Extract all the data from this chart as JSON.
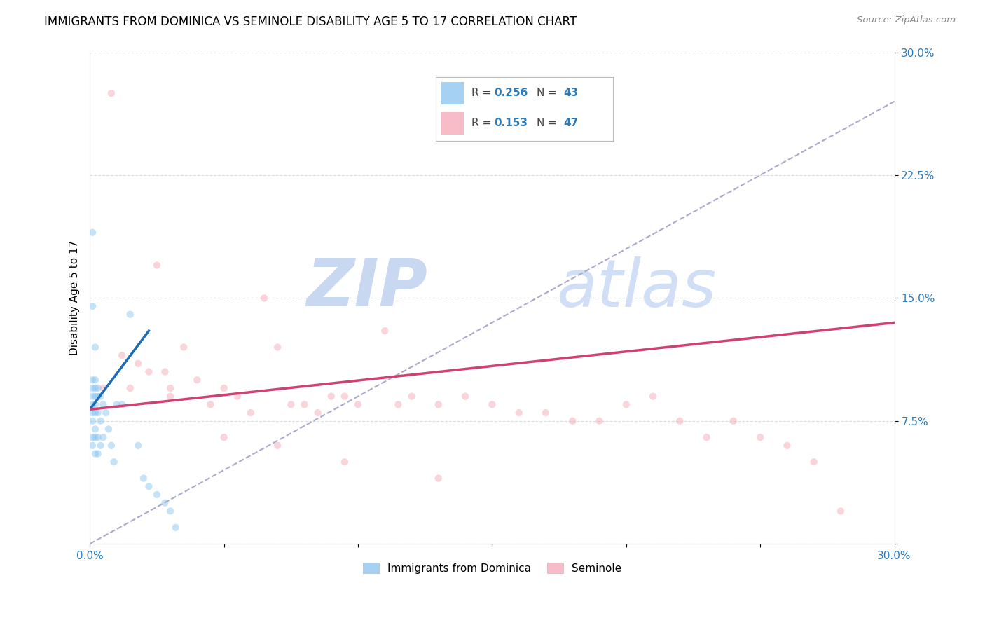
{
  "title": "IMMIGRANTS FROM DOMINICA VS SEMINOLE DISABILITY AGE 5 TO 17 CORRELATION CHART",
  "source": "Source: ZipAtlas.com",
  "ylabel": "Disability Age 5 to 17",
  "xlim": [
    0.0,
    0.3
  ],
  "ylim": [
    0.0,
    0.3
  ],
  "xticks": [
    0.0,
    0.05,
    0.1,
    0.15,
    0.2,
    0.25,
    0.3
  ],
  "yticks": [
    0.0,
    0.075,
    0.15,
    0.225,
    0.3
  ],
  "xticklabels": [
    "0.0%",
    "",
    "",
    "",
    "",
    "",
    "30.0%"
  ],
  "yticklabels": [
    "",
    "7.5%",
    "15.0%",
    "22.5%",
    "30.0%"
  ],
  "blue_scatter_x": [
    0.001,
    0.001,
    0.001,
    0.001,
    0.001,
    0.001,
    0.001,
    0.001,
    0.001,
    0.001,
    0.002,
    0.002,
    0.002,
    0.002,
    0.002,
    0.002,
    0.002,
    0.002,
    0.002,
    0.003,
    0.003,
    0.003,
    0.003,
    0.003,
    0.004,
    0.004,
    0.004,
    0.005,
    0.005,
    0.006,
    0.007,
    0.008,
    0.009,
    0.01,
    0.012,
    0.015,
    0.018,
    0.02,
    0.022,
    0.025,
    0.028,
    0.03,
    0.032
  ],
  "blue_scatter_y": [
    0.19,
    0.145,
    0.1,
    0.095,
    0.09,
    0.085,
    0.08,
    0.075,
    0.065,
    0.06,
    0.12,
    0.1,
    0.095,
    0.09,
    0.085,
    0.08,
    0.07,
    0.065,
    0.055,
    0.095,
    0.09,
    0.08,
    0.065,
    0.055,
    0.09,
    0.075,
    0.06,
    0.085,
    0.065,
    0.08,
    0.07,
    0.06,
    0.05,
    0.085,
    0.085,
    0.14,
    0.06,
    0.04,
    0.035,
    0.03,
    0.025,
    0.02,
    0.01
  ],
  "pink_scatter_x": [
    0.008,
    0.012,
    0.018,
    0.022,
    0.025,
    0.028,
    0.03,
    0.035,
    0.04,
    0.045,
    0.05,
    0.055,
    0.06,
    0.065,
    0.07,
    0.075,
    0.08,
    0.085,
    0.09,
    0.095,
    0.1,
    0.11,
    0.115,
    0.12,
    0.13,
    0.14,
    0.15,
    0.16,
    0.17,
    0.18,
    0.19,
    0.2,
    0.21,
    0.22,
    0.23,
    0.24,
    0.25,
    0.26,
    0.005,
    0.015,
    0.03,
    0.05,
    0.07,
    0.095,
    0.13,
    0.27,
    0.28
  ],
  "pink_scatter_y": [
    0.275,
    0.115,
    0.11,
    0.105,
    0.17,
    0.105,
    0.095,
    0.12,
    0.1,
    0.085,
    0.095,
    0.09,
    0.08,
    0.15,
    0.12,
    0.085,
    0.085,
    0.08,
    0.09,
    0.09,
    0.085,
    0.13,
    0.085,
    0.09,
    0.085,
    0.09,
    0.085,
    0.08,
    0.08,
    0.075,
    0.075,
    0.085,
    0.09,
    0.075,
    0.065,
    0.075,
    0.065,
    0.06,
    0.095,
    0.095,
    0.09,
    0.065,
    0.06,
    0.05,
    0.04,
    0.05,
    0.02
  ],
  "blue_line_x0": 0.0,
  "blue_line_x1": 0.022,
  "blue_line_y0": 0.082,
  "blue_line_y1": 0.13,
  "pink_line_x0": 0.0,
  "pink_line_x1": 0.3,
  "pink_line_y0": 0.082,
  "pink_line_y1": 0.135,
  "dash_line_x0": 0.0,
  "dash_line_x1": 0.3,
  "dash_line_y0": 0.0,
  "dash_line_y1": 0.27,
  "blue_color": "#7fbfef",
  "pink_color": "#f4a0b0",
  "blue_line_color": "#1a6db5",
  "pink_line_color": "#d04070",
  "dash_line_color": "#aaaacc",
  "watermark_zip": "ZIP",
  "watermark_atlas": "atlas",
  "watermark_color": "#c8d8f0",
  "grid_color": "#dddddd",
  "title_fontsize": 12,
  "axis_label_fontsize": 11,
  "tick_fontsize": 11,
  "scatter_size": 55,
  "scatter_alpha": 0.45,
  "legend_r1": "R = ",
  "legend_v1": "0.256",
  "legend_n1_label": "N = ",
  "legend_n1": "43",
  "legend_r2": "R = ",
  "legend_v2": "0.153",
  "legend_n2_label": "N = ",
  "legend_n2": "47",
  "legend_color1": "#2b7bba",
  "legend_color2": "#2b7bba",
  "bottom_legend1": "Immigrants from Dominica",
  "bottom_legend2": "Seminole"
}
